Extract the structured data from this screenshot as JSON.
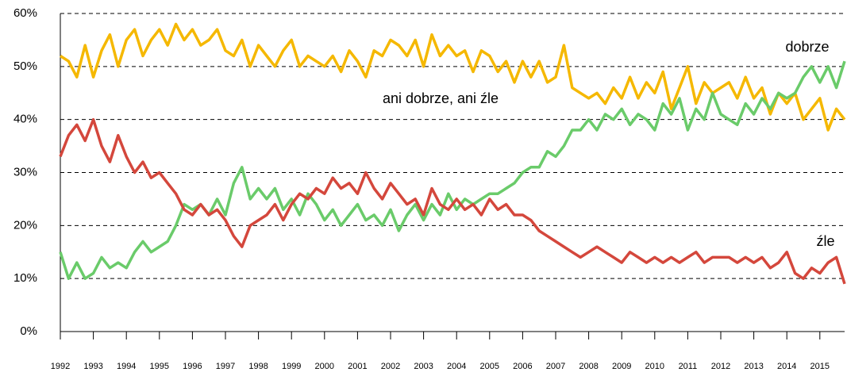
{
  "chart_data": {
    "type": "line",
    "x": [
      1992,
      1992.25,
      1992.5,
      1992.75,
      1993,
      1993.25,
      1993.5,
      1993.75,
      1994,
      1994.25,
      1994.5,
      1994.75,
      1995,
      1995.25,
      1995.5,
      1995.75,
      1996,
      1996.25,
      1996.5,
      1996.75,
      1997,
      1997.25,
      1997.5,
      1997.75,
      1998,
      1998.25,
      1998.5,
      1998.75,
      1999,
      1999.25,
      1999.5,
      1999.75,
      2000,
      2000.25,
      2000.5,
      2000.75,
      2001,
      2001.25,
      2001.5,
      2001.75,
      2002,
      2002.25,
      2002.5,
      2002.75,
      2003,
      2003.25,
      2003.5,
      2003.75,
      2004,
      2004.25,
      2004.5,
      2004.75,
      2005,
      2005.25,
      2005.5,
      2005.75,
      2006,
      2006.25,
      2006.5,
      2006.75,
      2007,
      2007.25,
      2007.5,
      2007.75,
      2008,
      2008.25,
      2008.5,
      2008.75,
      2009,
      2009.25,
      2009.5,
      2009.75,
      2010,
      2010.25,
      2010.5,
      2010.75,
      2011,
      2011.25,
      2011.5,
      2011.75,
      2012,
      2012.25,
      2012.5,
      2012.75,
      2013,
      2013.25,
      2013.5,
      2013.75,
      2014,
      2014.25,
      2014.5,
      2014.75,
      2015,
      2015.25,
      2015.5,
      2015.75
    ],
    "series": [
      {
        "name": "ani dobrze, ani źle",
        "color": "#f5b800",
        "values": [
          52,
          51,
          48,
          54,
          48,
          53,
          56,
          50,
          55,
          57,
          52,
          55,
          57,
          54,
          58,
          55,
          57,
          54,
          55,
          57,
          53,
          52,
          55,
          50,
          54,
          52,
          50,
          53,
          55,
          50,
          52,
          51,
          50,
          52,
          49,
          53,
          51,
          48,
          53,
          52,
          55,
          54,
          52,
          55,
          50,
          56,
          52,
          54,
          52,
          53,
          49,
          53,
          52,
          49,
          51,
          47,
          51,
          48,
          51,
          47,
          48,
          54,
          46,
          45,
          44,
          45,
          43,
          46,
          44,
          48,
          44,
          47,
          45,
          49,
          42,
          46,
          50,
          43,
          47,
          45,
          46,
          47,
          44,
          48,
          44,
          46,
          41,
          45,
          43,
          45,
          40,
          42,
          44,
          38,
          42,
          40
        ]
      },
      {
        "name": "dobrze",
        "color": "#6acb6a",
        "values": [
          15,
          10,
          13,
          10,
          11,
          14,
          12,
          13,
          12,
          15,
          17,
          15,
          16,
          17,
          20,
          24,
          23,
          24,
          22,
          25,
          22,
          28,
          31,
          25,
          27,
          25,
          27,
          23,
          25,
          22,
          26,
          24,
          21,
          23,
          20,
          22,
          24,
          21,
          22,
          20,
          23,
          19,
          22,
          24,
          21,
          24,
          22,
          26,
          23,
          25,
          24,
          25,
          26,
          26,
          27,
          28,
          30,
          31,
          31,
          34,
          33,
          35,
          38,
          38,
          40,
          38,
          41,
          40,
          42,
          39,
          41,
          40,
          38,
          43,
          41,
          44,
          38,
          42,
          40,
          45,
          41,
          40,
          39,
          43,
          41,
          44,
          42,
          45,
          44,
          45,
          48,
          50,
          47,
          50,
          46,
          51
        ]
      },
      {
        "name": "źle",
        "color": "#d4473c",
        "values": [
          33,
          37,
          39,
          36,
          40,
          35,
          32,
          37,
          33,
          30,
          32,
          29,
          30,
          28,
          26,
          23,
          22,
          24,
          22,
          23,
          21,
          18,
          16,
          20,
          21,
          22,
          24,
          21,
          24,
          26,
          25,
          27,
          26,
          29,
          27,
          28,
          26,
          30,
          27,
          25,
          28,
          26,
          24,
          25,
          22,
          27,
          24,
          23,
          25,
          23,
          24,
          22,
          25,
          23,
          24,
          22,
          22,
          21,
          19,
          18,
          17,
          16,
          15,
          14,
          15,
          16,
          15,
          14,
          13,
          15,
          14,
          13,
          14,
          13,
          14,
          13,
          14,
          15,
          13,
          14,
          14,
          14,
          13,
          14,
          13,
          14,
          12,
          13,
          15,
          11,
          10,
          12,
          11,
          13,
          14,
          9
        ]
      }
    ],
    "annotations": [
      "dobrze",
      "ani dobrze, ani źle",
      "źle"
    ],
    "xlim": [
      1992,
      2015.75
    ],
    "xticks": [
      1992,
      1993,
      1994,
      1995,
      1996,
      1997,
      1998,
      1999,
      2000,
      2001,
      2002,
      2003,
      2004,
      2005,
      2006,
      2007,
      2008,
      2009,
      2010,
      2011,
      2012,
      2013,
      2014,
      2015
    ],
    "ylim": [
      0,
      60
    ],
    "yticks": [
      {
        "value": 0,
        "label": "0%"
      },
      {
        "value": 10,
        "label": "10%"
      },
      {
        "value": 20,
        "label": "20%"
      },
      {
        "value": 30,
        "label": "30%"
      },
      {
        "value": 40,
        "label": "40%"
      },
      {
        "value": 50,
        "label": "50%"
      },
      {
        "value": 60,
        "label": "60%"
      }
    ],
    "grid": true
  }
}
